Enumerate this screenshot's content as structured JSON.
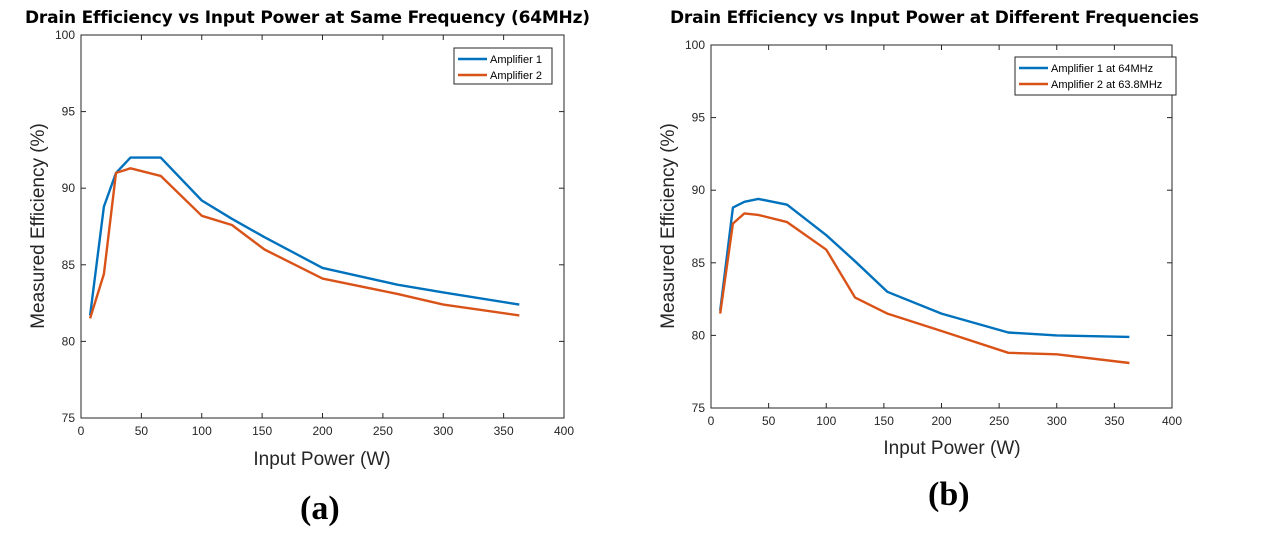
{
  "chart_data": [
    {
      "type": "line",
      "title": "Drain Efficiency vs Input Power at Same Frequency (64MHz)",
      "xlabel": "Input Power (W)",
      "ylabel": "Measured Efficiency (%)",
      "xlim": [
        0,
        400
      ],
      "ylim": [
        75,
        100
      ],
      "xticks": [
        0,
        50,
        100,
        150,
        200,
        250,
        300,
        350,
        400
      ],
      "yticks": [
        75,
        80,
        85,
        90,
        95,
        100
      ],
      "grid": false,
      "legend_position": "top-right",
      "panel_label": "(a)",
      "series": [
        {
          "name": "Amplifier 1",
          "color": "#0072BD",
          "x": [
            7.5,
            19,
            29,
            41,
            66,
            100,
            125,
            152,
            200,
            262,
            300,
            363
          ],
          "y": [
            81.7,
            88.8,
            91.0,
            92.0,
            92.0,
            89.2,
            88.0,
            86.8,
            84.8,
            83.7,
            83.2,
            82.4
          ]
        },
        {
          "name": "Amplifier 2",
          "color": "#D95319",
          "x": [
            7.5,
            19,
            29,
            41,
            66,
            100,
            125,
            152,
            200,
            262,
            300,
            363
          ],
          "y": [
            81.5,
            84.4,
            91.0,
            91.3,
            90.8,
            88.2,
            87.6,
            86.0,
            84.1,
            83.1,
            82.4,
            81.7
          ]
        }
      ]
    },
    {
      "type": "line",
      "title": "Drain Efficiency vs Input Power at Different Frequencies",
      "xlabel": "Input Power (W)",
      "ylabel": "Measured Efficiency (%)",
      "xlim": [
        0,
        400
      ],
      "ylim": [
        75,
        100
      ],
      "xticks": [
        0,
        50,
        100,
        150,
        200,
        250,
        300,
        350,
        400
      ],
      "yticks": [
        75,
        80,
        85,
        90,
        95,
        100
      ],
      "grid": false,
      "legend_position": "top-right",
      "panel_label": "(b)",
      "series": [
        {
          "name": "Amplifier 1 at 64MHz",
          "color": "#0072BD",
          "x": [
            8,
            19,
            29,
            41,
            66,
            100,
            125,
            153,
            200,
            258,
            300,
            363
          ],
          "y": [
            81.7,
            88.8,
            89.2,
            89.4,
            89.0,
            86.9,
            85.1,
            83.0,
            81.5,
            80.2,
            80.0,
            79.9
          ]
        },
        {
          "name": "Amplifier 2 at 63.8MHz",
          "color": "#D95319",
          "x": [
            8,
            19,
            29,
            41,
            66,
            100,
            125,
            153,
            200,
            258,
            300,
            363
          ],
          "y": [
            81.5,
            87.7,
            88.4,
            88.3,
            87.8,
            85.9,
            82.6,
            81.5,
            80.3,
            78.8,
            78.7,
            78.1
          ]
        }
      ]
    }
  ]
}
